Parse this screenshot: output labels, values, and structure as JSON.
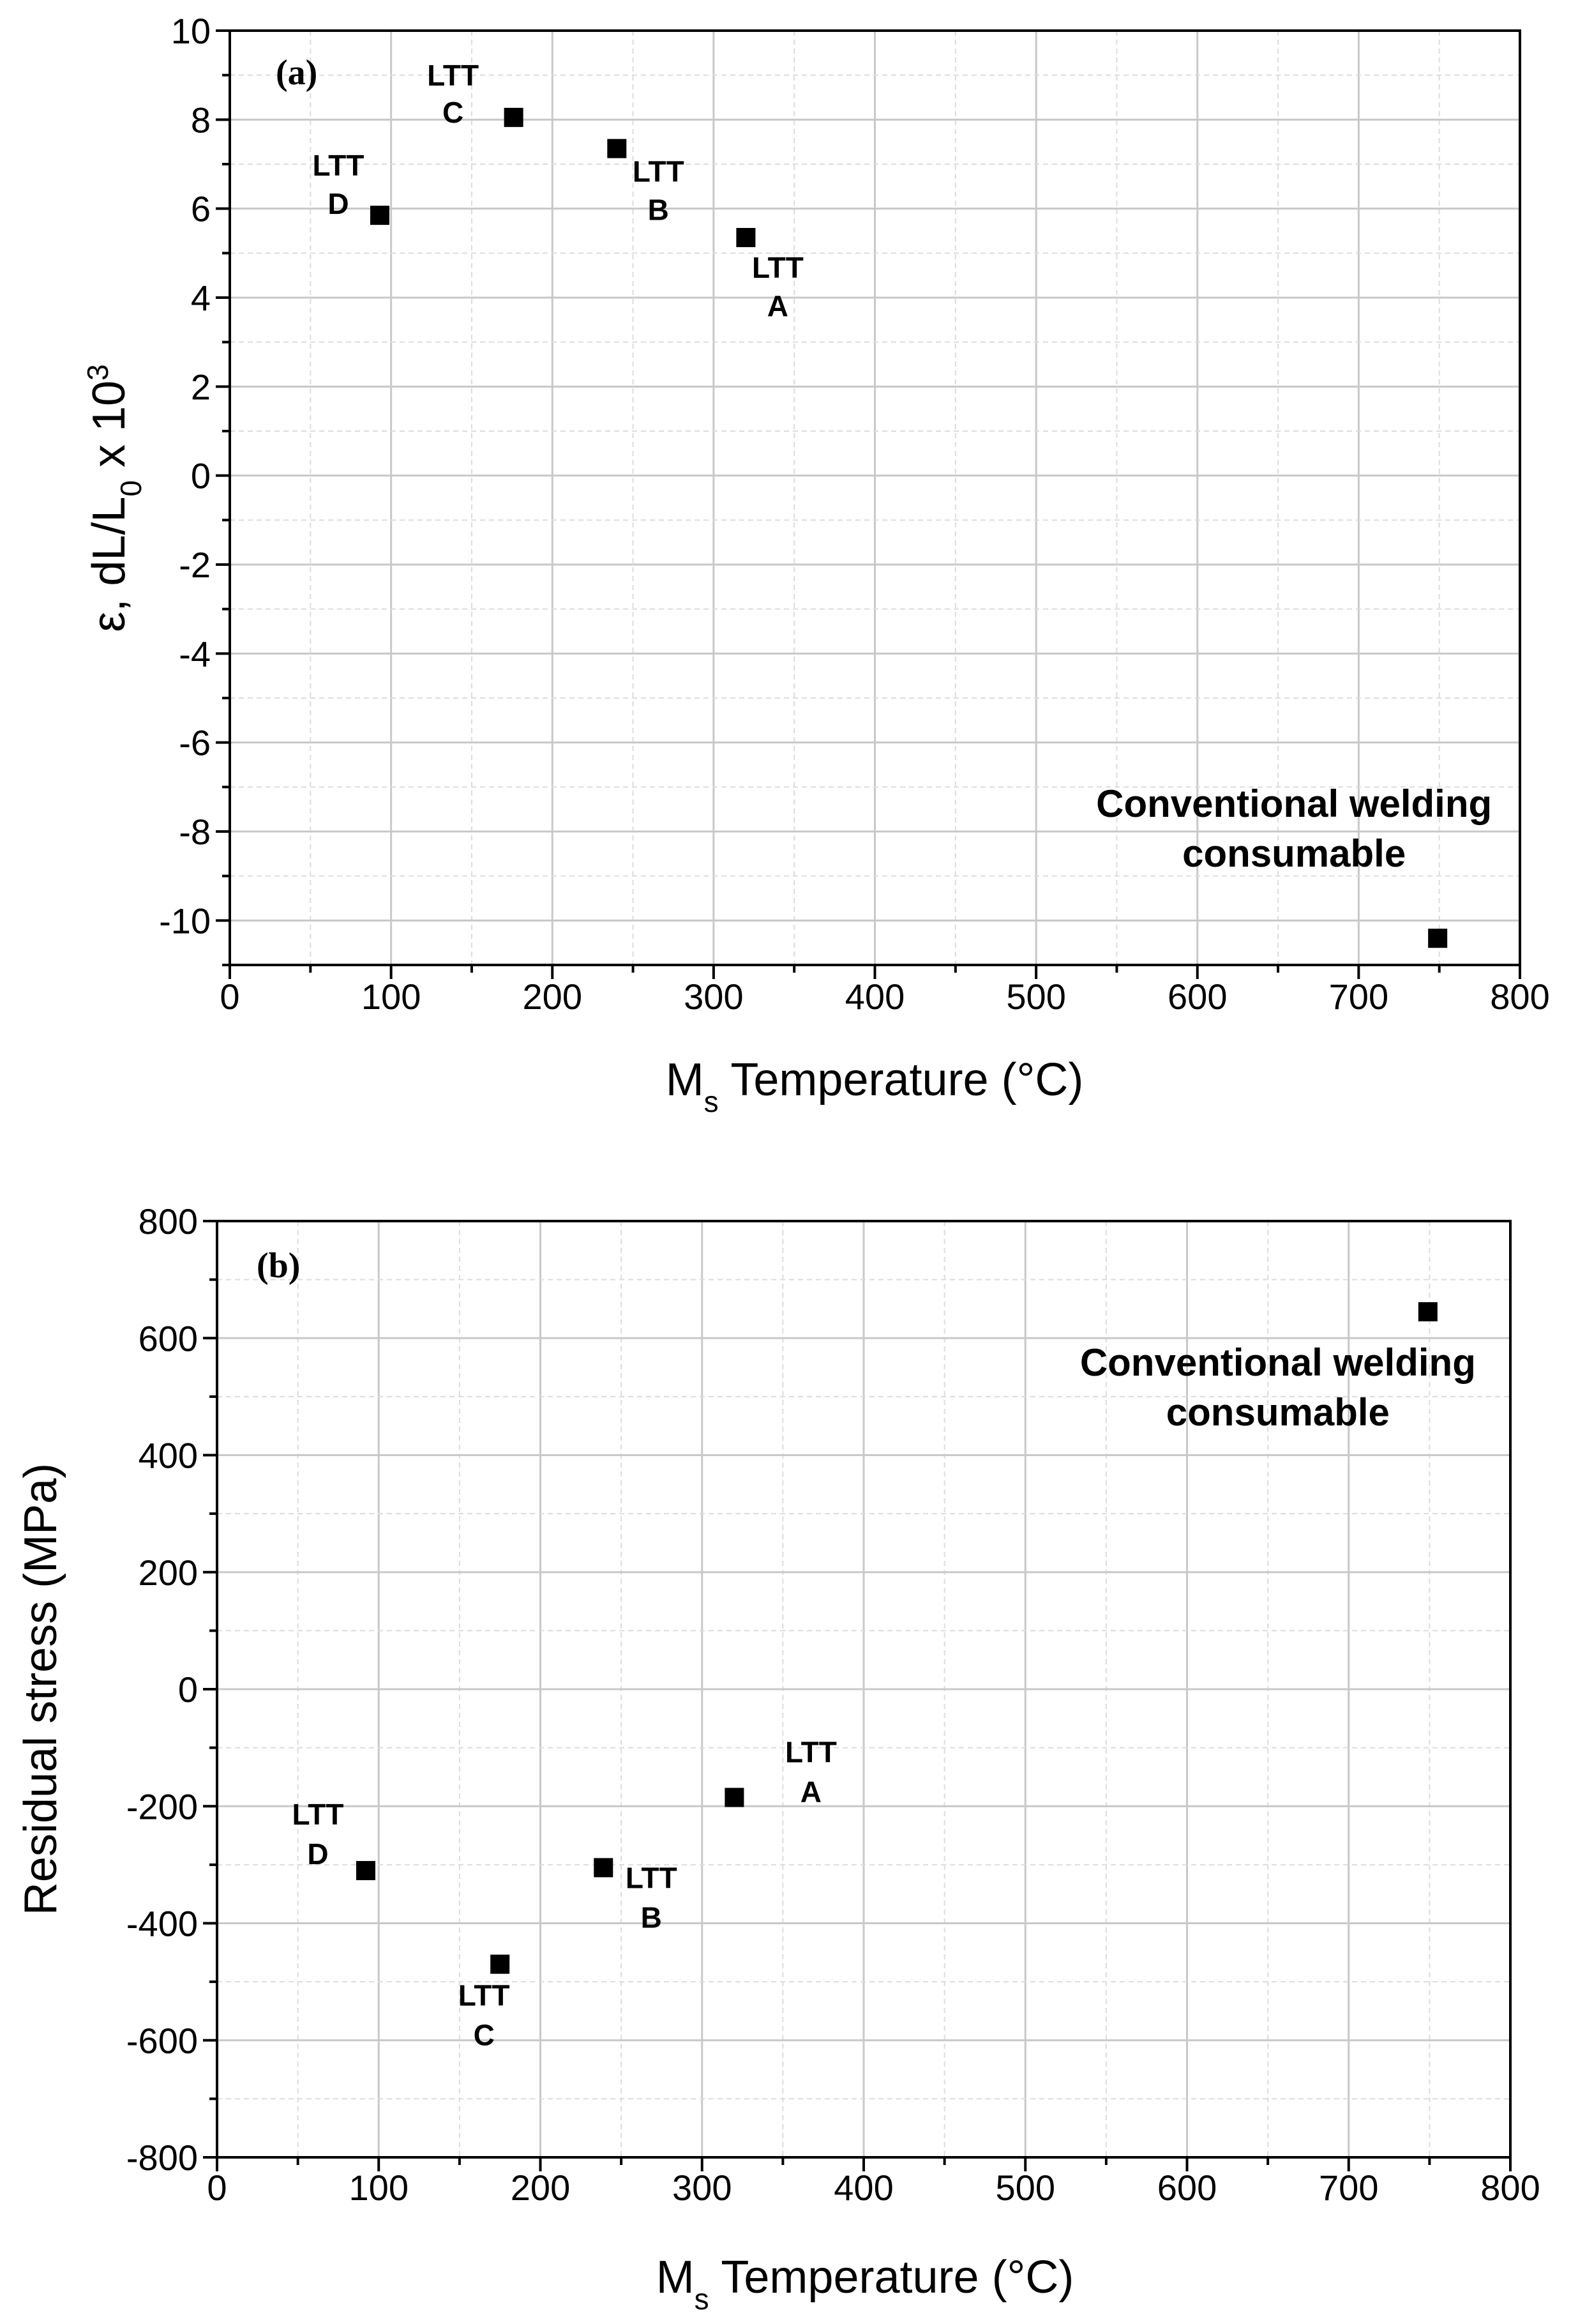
{
  "chart_data": [
    {
      "type": "scatter",
      "panel": "(a)",
      "title": "",
      "xlabel_main": "M",
      "xlabel_sub": "s",
      "xlabel_rest": " Temperature (°C)",
      "ylabel_main": "ε, dL/L",
      "ylabel_sub": "0",
      "ylabel_rest": " x 10",
      "ylabel_sup": "3",
      "xlim": [
        0,
        800
      ],
      "ylim": [
        -11,
        10
      ],
      "xticks": [
        0,
        100,
        200,
        300,
        400,
        500,
        600,
        700,
        800
      ],
      "yticks": [
        -10,
        -8,
        -6,
        -4,
        -2,
        0,
        2,
        4,
        6,
        8,
        10
      ],
      "grid": true,
      "points": [
        {
          "name": "LTT D",
          "x": 93,
          "y": 5.85,
          "label_lines": [
            "LTT",
            "D"
          ]
        },
        {
          "name": "LTT C",
          "x": 176,
          "y": 8.05,
          "label_lines": [
            "LTT",
            "C"
          ]
        },
        {
          "name": "LTT B",
          "x": 240,
          "y": 7.35,
          "label_lines": [
            "LTT",
            "B"
          ]
        },
        {
          "name": "LTT A",
          "x": 320,
          "y": 5.35,
          "label_lines": [
            "LTT",
            "A"
          ]
        },
        {
          "name": "Conventional welding consumable",
          "x": 749,
          "y": -10.4,
          "label_lines": [
            "Conventional welding",
            "consumable"
          ]
        }
      ]
    },
    {
      "type": "scatter",
      "panel": "(b)",
      "title": "",
      "xlabel_main": "M",
      "xlabel_sub": "s",
      "xlabel_rest": " Temperature (°C)",
      "ylabel": "Residual stress  (MPa)",
      "xlim": [
        0,
        800
      ],
      "ylim": [
        -800,
        800
      ],
      "xticks": [
        0,
        100,
        200,
        300,
        400,
        500,
        600,
        700,
        800
      ],
      "yticks": [
        -800,
        -600,
        -400,
        -200,
        0,
        200,
        400,
        600,
        800
      ],
      "grid": true,
      "points": [
        {
          "name": "LTT D",
          "x": 92,
          "y": -310,
          "label_lines": [
            "LTT",
            "D"
          ]
        },
        {
          "name": "LTT C",
          "x": 175,
          "y": -470,
          "label_lines": [
            "LTT",
            "C"
          ]
        },
        {
          "name": "LTT B",
          "x": 239,
          "y": -305,
          "label_lines": [
            "LTT",
            "B"
          ]
        },
        {
          "name": "LTT A",
          "x": 320,
          "y": -185,
          "label_lines": [
            "LTT",
            "A"
          ]
        },
        {
          "name": "Conventional welding consumable",
          "x": 749,
          "y": 645,
          "label_lines": [
            "Conventional welding",
            "consumable"
          ]
        }
      ]
    }
  ]
}
